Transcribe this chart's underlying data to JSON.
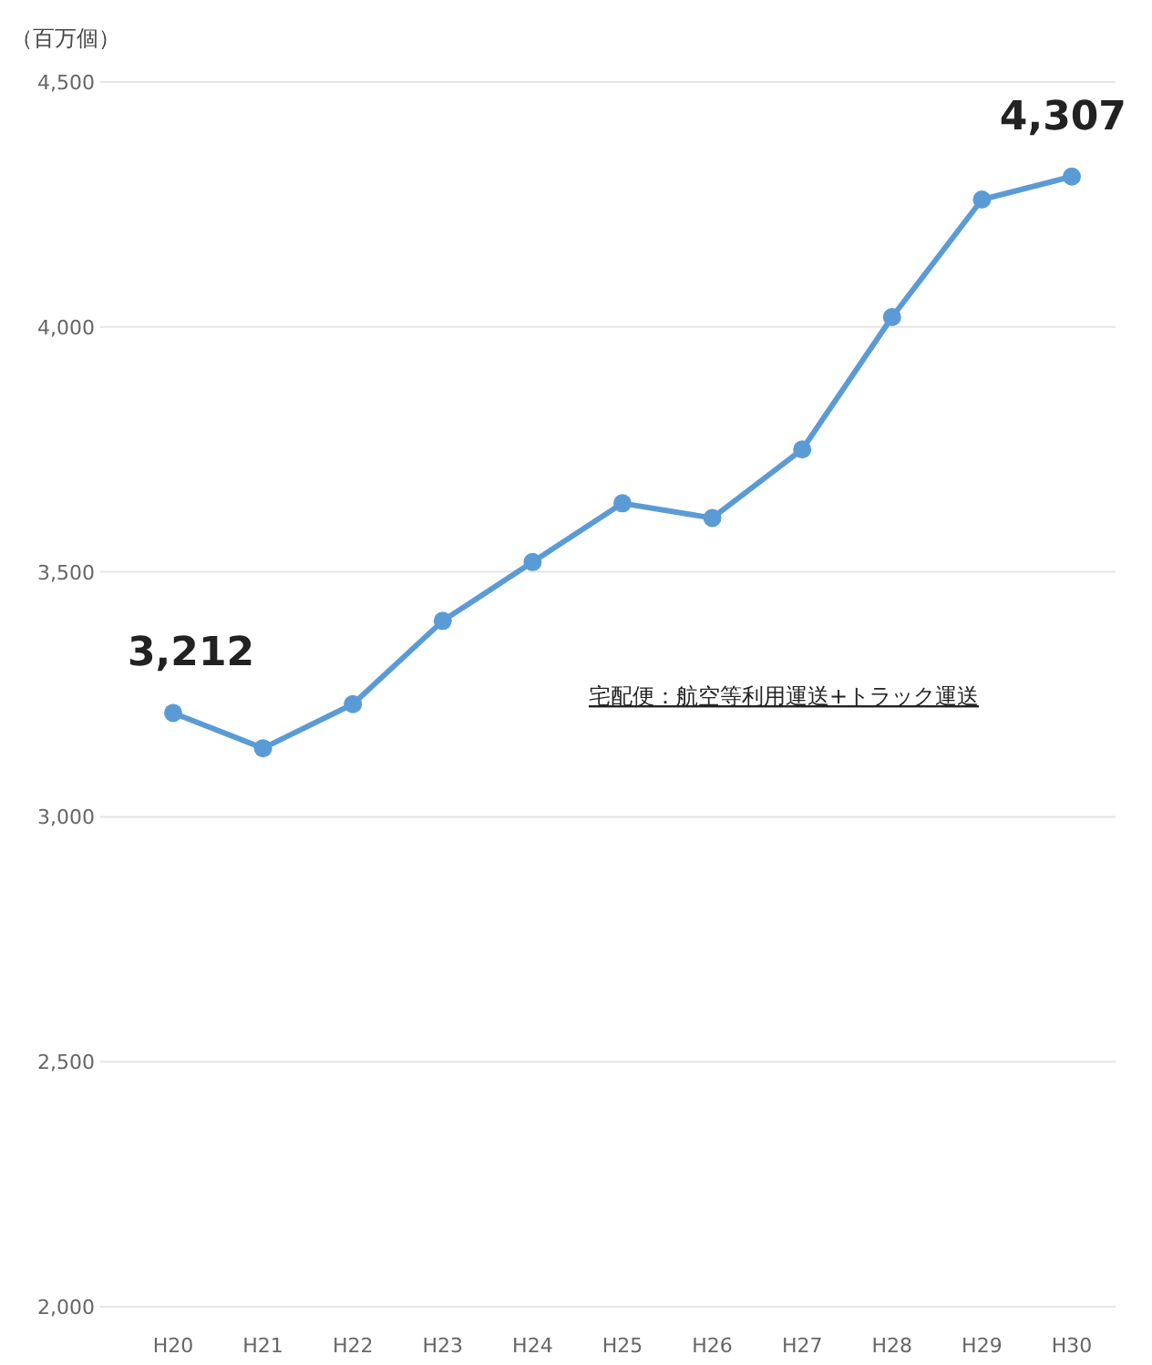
{
  "chart_data": {
    "type": "line",
    "ylabel": "（百万個）",
    "categories": [
      "H20",
      "H21",
      "H22",
      "H23",
      "H24",
      "H25",
      "H26",
      "H27",
      "H28",
      "H29",
      "H30"
    ],
    "series": [
      {
        "color": "#5b9bd5",
        "values": [
          3212,
          3140,
          3230,
          3400,
          3520,
          3640,
          3610,
          3750,
          4020,
          4260,
          4307
        ],
        "value_labels": [
          "3,212",
          null,
          null,
          null,
          null,
          null,
          null,
          null,
          null,
          null,
          "4,307"
        ]
      }
    ],
    "ylim": [
      2000,
      4500
    ],
    "yticks": [
      {
        "value": 2000,
        "label": "2,000"
      },
      {
        "value": 2500,
        "label": "2,500"
      },
      {
        "value": 3000,
        "label": "3,000"
      },
      {
        "value": 3500,
        "label": "3,500"
      },
      {
        "value": 4000,
        "label": "4,000"
      },
      {
        "value": 4500,
        "label": "4,500"
      }
    ],
    "grid": "y",
    "marker": "circle",
    "line_style": "solid",
    "annotations": [
      "宅配便：航空等利用運送+トラック運送"
    ]
  }
}
